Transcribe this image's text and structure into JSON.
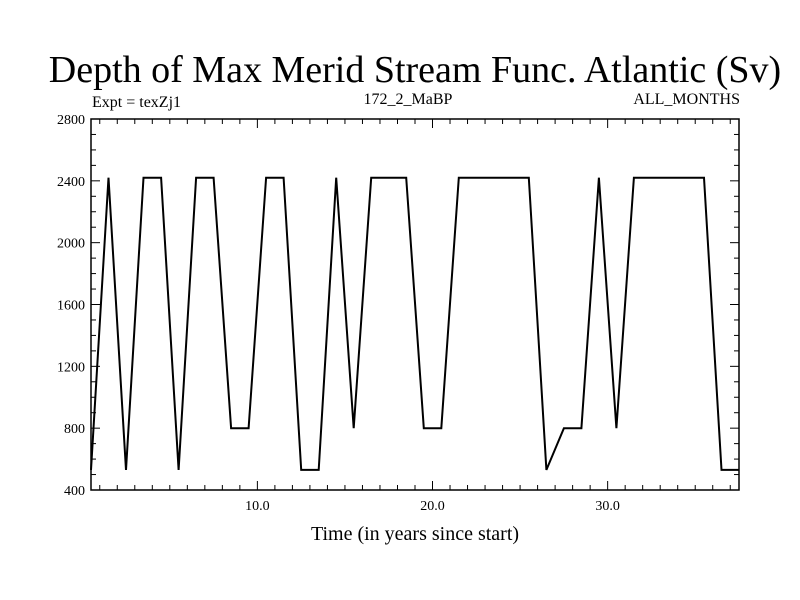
{
  "chart_data": {
    "type": "line",
    "title": "Depth of Max Merid Stream Func. Atlantic (Sv)",
    "subtitle_left": "Expt = texZj1",
    "subtitle_center": "172_2_MaBP",
    "subtitle_right": "ALL_MONTHS",
    "xlabel": "Time (in years since start)",
    "ylabel": "",
    "xlim": [
      0.5,
      37.5
    ],
    "ylim": [
      400,
      2800
    ],
    "xticks": [
      10,
      20,
      30
    ],
    "xtick_labels": [
      "10.0",
      "20.0",
      "30.0"
    ],
    "yticks": [
      400,
      800,
      1200,
      1600,
      2000,
      2400,
      2800
    ],
    "ytick_labels": [
      "400",
      "800",
      "1200",
      "1600",
      "2000",
      "2400",
      "2800"
    ],
    "grid": false,
    "x": [
      0.5,
      1.5,
      2.5,
      3.5,
      4.5,
      5.5,
      6.5,
      7.5,
      8.5,
      9.5,
      10.5,
      11.5,
      12.5,
      13.5,
      14.5,
      15.5,
      16.5,
      17.5,
      18.5,
      19.5,
      20.5,
      21.5,
      22.5,
      23.5,
      24.5,
      25.5,
      26.5,
      27.5,
      28.5,
      29.5,
      30.5,
      31.5,
      32.5,
      33.5,
      34.5,
      35.5,
      36.5,
      37.5
    ],
    "series": [
      {
        "values": [
          530,
          2420,
          530,
          2420,
          2420,
          530,
          2420,
          2420,
          800,
          800,
          2420,
          2420,
          530,
          530,
          2420,
          800,
          2420,
          2420,
          2420,
          800,
          800,
          2420,
          2420,
          2420,
          2420,
          2420,
          530,
          800,
          800,
          2420,
          800,
          2420,
          2420,
          2420,
          2420,
          2420,
          530,
          530
        ],
        "color": "#000000"
      }
    ]
  }
}
